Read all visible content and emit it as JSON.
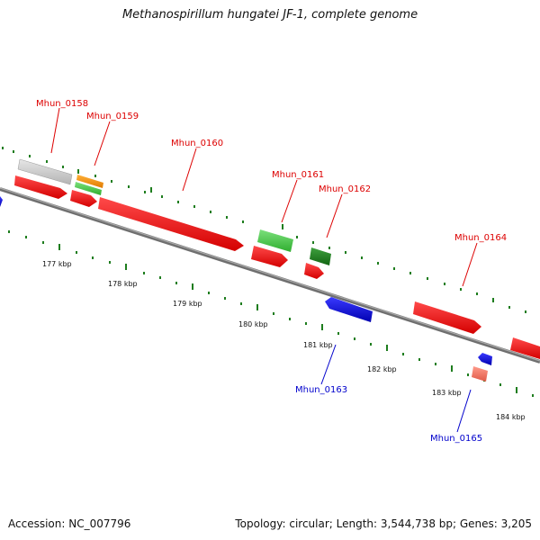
{
  "title": "Methanospirillum hungatei JF-1, complete genome",
  "footer": {
    "accession": "Accession: NC_007796",
    "summary": "Topology: circular; Length: 3,544,738 bp; Genes: 3,205"
  },
  "colors": {
    "backbone": "#888888",
    "tick": "#1e7d1e",
    "forward_label": "#dd0000",
    "reverse_label": "#0000cc"
  },
  "scale_ticks": [
    {
      "label": "177 kbp"
    },
    {
      "label": "178 kbp"
    },
    {
      "label": "179 kbp"
    },
    {
      "label": "180 kbp"
    },
    {
      "label": "181 kbp"
    },
    {
      "label": "182 kbp"
    },
    {
      "label": "183 kbp"
    },
    {
      "label": "184 kbp"
    }
  ],
  "gene_labels": [
    {
      "name": "Mhun_0158",
      "strand": "forward"
    },
    {
      "name": "Mhun_0159",
      "strand": "forward"
    },
    {
      "name": "Mhun_0160",
      "strand": "forward"
    },
    {
      "name": "Mhun_0161",
      "strand": "forward"
    },
    {
      "name": "Mhun_0162",
      "strand": "forward"
    },
    {
      "name": "Mhun_0164",
      "strand": "forward"
    },
    {
      "name": "Mhun_0163",
      "strand": "reverse"
    },
    {
      "name": "Mhun_0165",
      "strand": "reverse"
    }
  ]
}
